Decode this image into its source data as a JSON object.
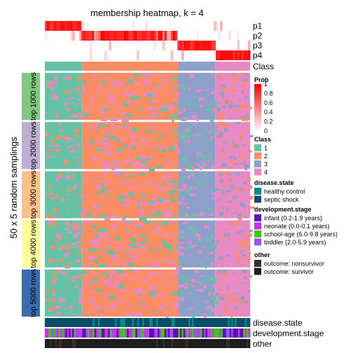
{
  "chart_data": {
    "type": "heatmap",
    "title": "membership heatmap, k = 4",
    "ylabel": "50 x 5 random samplings",
    "prob_rows": [
      "p1",
      "p2",
      "p3",
      "p4"
    ],
    "class_row_label": "Class",
    "class_segments": [
      {
        "cls": 1,
        "frac": 0.18
      },
      {
        "cls": 2,
        "frac": 0.47
      },
      {
        "cls": 3,
        "frac": 0.18
      },
      {
        "cls": 4,
        "frac": 0.17
      }
    ],
    "row_groups": [
      {
        "label": "top 1000 rows",
        "color": "#7fc97f"
      },
      {
        "label": "top 2000 rows",
        "color": "#beaed4"
      },
      {
        "label": "top 3000 rows",
        "color": "#fdc086"
      },
      {
        "label": "top 4000 rows",
        "color": "#ffff99"
      },
      {
        "label": "top 5000 rows",
        "color": "#386cb0"
      }
    ],
    "bottom_tracks": [
      "disease.state",
      "development.stage",
      "other"
    ],
    "legend": {
      "prob": {
        "title": "Prob",
        "ticks": [
          "1",
          "0.8",
          "0.6",
          "0.4",
          "0.2",
          "0"
        ],
        "colors": [
          "#ff0000",
          "#ffffff"
        ]
      },
      "class": {
        "title": "Class",
        "items": [
          {
            "label": "1",
            "color": "#66c2a5"
          },
          {
            "label": "2",
            "color": "#fc8d62"
          },
          {
            "label": "3",
            "color": "#8da0cb"
          },
          {
            "label": "4",
            "color": "#e78ac3"
          }
        ]
      },
      "disease_state": {
        "title": "disease.state",
        "items": [
          {
            "label": "healthy control",
            "color": "#008b8b"
          },
          {
            "label": "septic shock",
            "color": "#0b4d6b"
          }
        ]
      },
      "development_stage": {
        "title": "development.stage",
        "items": [
          {
            "label": "infant (0.2-1.9 years)",
            "color": "#5a14b4"
          },
          {
            "label": "neonate (0.0-0.1 years)",
            "color": "#c832e6"
          },
          {
            "label": "school-age (6.0-9.8 years)",
            "color": "#3cc814"
          },
          {
            "label": "toddler (2.0-5.9 years)",
            "color": "#a050f0"
          }
        ]
      },
      "other": {
        "title": "other",
        "items": [
          {
            "label": "outcome: nonsurvivor",
            "color": "#3c2d28"
          },
          {
            "label": "outcome: survivor",
            "color": "#1e1e1e"
          }
        ]
      }
    }
  }
}
